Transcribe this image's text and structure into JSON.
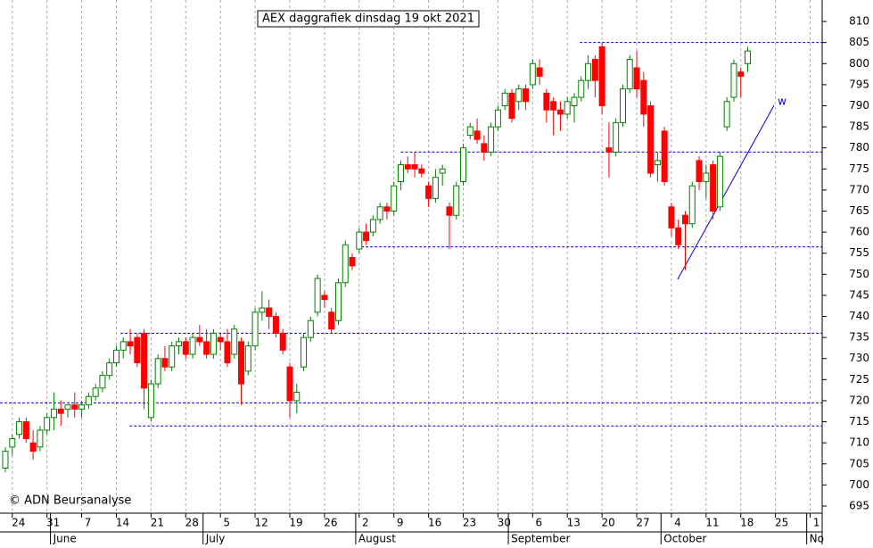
{
  "chart_data": {
    "type": "candlestick",
    "title": "AEX daggrafiek dinsdag 19 okt 2021",
    "copyright": "© ADN Beursanalyse",
    "up_color": "#008000",
    "down_color": "#ff0000",
    "level_color": "#0000cc",
    "grid": true,
    "open": [
      704,
      709,
      712,
      715,
      710,
      709,
      713,
      716,
      718,
      718,
      719,
      718,
      719,
      721,
      723,
      726,
      729,
      732,
      734,
      735,
      736,
      716,
      724,
      730,
      728,
      733,
      734,
      731,
      735,
      734,
      731,
      735,
      734,
      731,
      734,
      727,
      733,
      741,
      742,
      740,
      736,
      728,
      720,
      728,
      735,
      741,
      745,
      741,
      739,
      748,
      754,
      756,
      760,
      760,
      763,
      766,
      765,
      772,
      776,
      776,
      775,
      771,
      768,
      774,
      766,
      764,
      772,
      783,
      784,
      781,
      779,
      785,
      790,
      793,
      791,
      794,
      795,
      799,
      793,
      791,
      789,
      788,
      790,
      792,
      796,
      801,
      804,
      780,
      779,
      786,
      794,
      799,
      796,
      790,
      776,
      784,
      766,
      761,
      764,
      762,
      777,
      772,
      776,
      766,
      785,
      792,
      798,
      800
    ],
    "high": [
      709,
      712,
      716,
      716,
      713,
      714,
      717,
      722,
      720,
      719,
      722,
      720,
      722,
      724,
      727,
      730,
      733,
      735,
      737,
      736,
      737,
      725,
      731,
      733,
      734,
      735,
      735,
      736,
      738,
      737,
      737,
      736,
      737,
      738,
      735,
      734,
      742,
      746,
      744,
      741,
      737,
      729,
      724,
      736,
      740,
      750,
      746,
      742,
      749,
      758,
      755,
      761,
      762,
      764,
      767,
      767,
      772,
      777,
      778,
      779,
      776,
      772,
      775,
      776,
      767,
      772,
      781,
      786,
      787,
      783,
      786,
      790,
      794,
      794,
      795,
      795,
      801,
      801,
      794,
      792,
      791,
      792,
      793,
      797,
      802,
      802,
      805,
      786,
      787,
      795,
      802,
      803,
      798,
      791,
      779,
      785,
      767,
      763,
      765,
      772,
      778,
      776,
      777,
      779,
      792,
      801,
      799,
      804
    ],
    "low": [
      703,
      707,
      711,
      710,
      706,
      708,
      712,
      713,
      714,
      716,
      716,
      716,
      718,
      720,
      722,
      725,
      728,
      730,
      731,
      728,
      718,
      715,
      723,
      727,
      727,
      731,
      730,
      730,
      733,
      730,
      730,
      732,
      728,
      730,
      719,
      726,
      732,
      739,
      737,
      735,
      731,
      716,
      717,
      727,
      734,
      740,
      742,
      736,
      738,
      747,
      751,
      755,
      757,
      759,
      762,
      763,
      764,
      770,
      774,
      773,
      773,
      766,
      767,
      771,
      756,
      763,
      771,
      782,
      781,
      777,
      778,
      784,
      789,
      786,
      789,
      789,
      794,
      795,
      786,
      783,
      784,
      787,
      786,
      791,
      794,
      792,
      788,
      773,
      778,
      785,
      793,
      792,
      785,
      773,
      772,
      771,
      759,
      756,
      751,
      761,
      770,
      768,
      763,
      765,
      784,
      791,
      792,
      798
    ],
    "close": [
      708,
      711,
      715,
      711,
      708,
      713,
      716,
      718,
      717,
      719,
      718,
      719,
      721,
      723,
      726,
      729,
      732,
      734,
      733,
      729,
      723,
      724,
      730,
      728,
      733,
      734,
      731,
      735,
      734,
      731,
      736,
      734,
      729,
      737,
      724,
      733,
      741,
      742,
      740,
      736,
      732,
      720,
      722,
      735,
      739,
      749,
      744,
      737,
      748,
      757,
      752,
      760,
      758,
      763,
      766,
      765,
      771,
      776,
      775,
      775,
      774,
      768,
      773,
      775,
      764,
      771,
      780,
      785,
      782,
      779,
      785,
      789,
      793,
      787,
      794,
      791,
      800,
      797,
      789,
      789,
      788,
      791,
      792,
      796,
      800,
      796,
      790,
      779,
      786,
      794,
      801,
      794,
      788,
      774,
      777,
      772,
      761,
      757,
      762,
      771,
      772,
      774,
      765,
      778,
      791,
      800,
      797,
      803
    ],
    "xlim": [
      -0.77,
      117.73
    ],
    "ylim": [
      693.3,
      815.1
    ],
    "yticks": [
      695,
      700,
      705,
      710,
      715,
      720,
      725,
      730,
      735,
      740,
      745,
      750,
      755,
      760,
      765,
      770,
      775,
      780,
      785,
      790,
      795,
      800,
      805,
      810
    ],
    "xticks": [
      {
        "value": 1,
        "label": "24"
      },
      {
        "value": 6,
        "label": "31"
      },
      {
        "value": 11,
        "label": "7"
      },
      {
        "value": 16,
        "label": "14"
      },
      {
        "value": 21,
        "label": "21"
      },
      {
        "value": 26,
        "label": "28"
      },
      {
        "value": 31,
        "label": "5"
      },
      {
        "value": 36,
        "label": "12"
      },
      {
        "value": 41,
        "label": "19"
      },
      {
        "value": 46,
        "label": "26"
      },
      {
        "value": 51,
        "label": "2"
      },
      {
        "value": 56,
        "label": "9"
      },
      {
        "value": 61,
        "label": "16"
      },
      {
        "value": 66,
        "label": "23"
      },
      {
        "value": 71,
        "label": "30"
      },
      {
        "value": 76,
        "label": "6"
      },
      {
        "value": 81,
        "label": "13"
      },
      {
        "value": 86,
        "label": "20"
      },
      {
        "value": 91,
        "label": "27"
      },
      {
        "value": 96,
        "label": "4"
      },
      {
        "value": 101,
        "label": "11"
      },
      {
        "value": 106,
        "label": "18"
      },
      {
        "value": 111,
        "label": "25"
      },
      {
        "value": 116,
        "label": "1"
      }
    ],
    "months": [
      {
        "value": 6.5,
        "label": "June"
      },
      {
        "value": 28.5,
        "label": "July"
      },
      {
        "value": 50.5,
        "label": "August"
      },
      {
        "value": 72.5,
        "label": "September"
      },
      {
        "value": 94.5,
        "label": "October"
      },
      {
        "value": 115.5,
        "label": "No"
      }
    ],
    "levels": [
      {
        "value": 805,
        "start": 82.8
      },
      {
        "value": 779,
        "start": 57
      },
      {
        "value": 756.5,
        "start": 51.3
      },
      {
        "value": 736,
        "start": 16.6
      },
      {
        "value": 719.5,
        "start": -0.77
      },
      {
        "value": 714,
        "start": 17.9
      }
    ],
    "trendline": {
      "x": [
        96.9,
        110.8
      ],
      "y": [
        748.8,
        790.1
      ],
      "label": "w"
    }
  }
}
